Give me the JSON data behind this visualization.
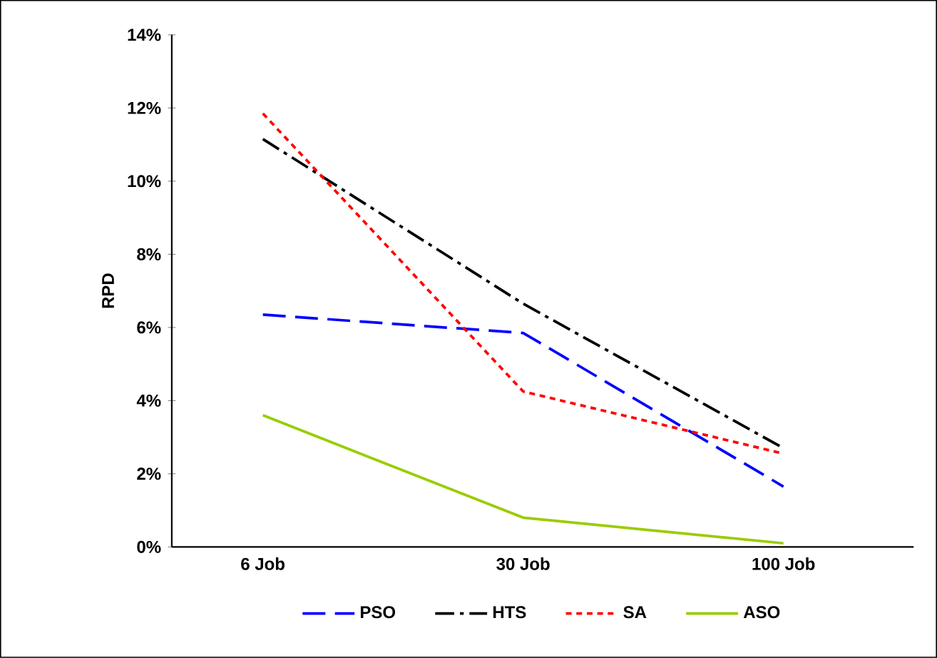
{
  "chart_data": {
    "type": "line",
    "ylabel": "RPD",
    "categories": [
      "6 Job",
      "30 Job",
      "100 Job"
    ],
    "series": [
      {
        "name": "PSO",
        "color": "#0000ff",
        "line_style": "dashed",
        "values": [
          6.35,
          5.85,
          1.65
        ]
      },
      {
        "name": "HTS",
        "color": "#000000",
        "line_style": "dashdot",
        "values": [
          11.15,
          6.65,
          2.7
        ]
      },
      {
        "name": "SA",
        "color": "#ff0000",
        "line_style": "dotted",
        "values": [
          11.85,
          4.25,
          2.55
        ]
      },
      {
        "name": "ASO",
        "color": "#99cc00",
        "line_style": "solid",
        "values": [
          3.6,
          0.8,
          0.1
        ]
      }
    ],
    "ylim": [
      0,
      14
    ],
    "yticks": [
      {
        "value": 0,
        "label": "0%"
      },
      {
        "value": 2,
        "label": "2%"
      },
      {
        "value": 4,
        "label": "4%"
      },
      {
        "value": 6,
        "label": "6%"
      },
      {
        "value": 8,
        "label": "8%"
      },
      {
        "value": 10,
        "label": "10%"
      },
      {
        "value": 12,
        "label": "12%"
      },
      {
        "value": 14,
        "label": "14%"
      }
    ],
    "grid": false,
    "legend": "bottom",
    "marker": "none"
  }
}
